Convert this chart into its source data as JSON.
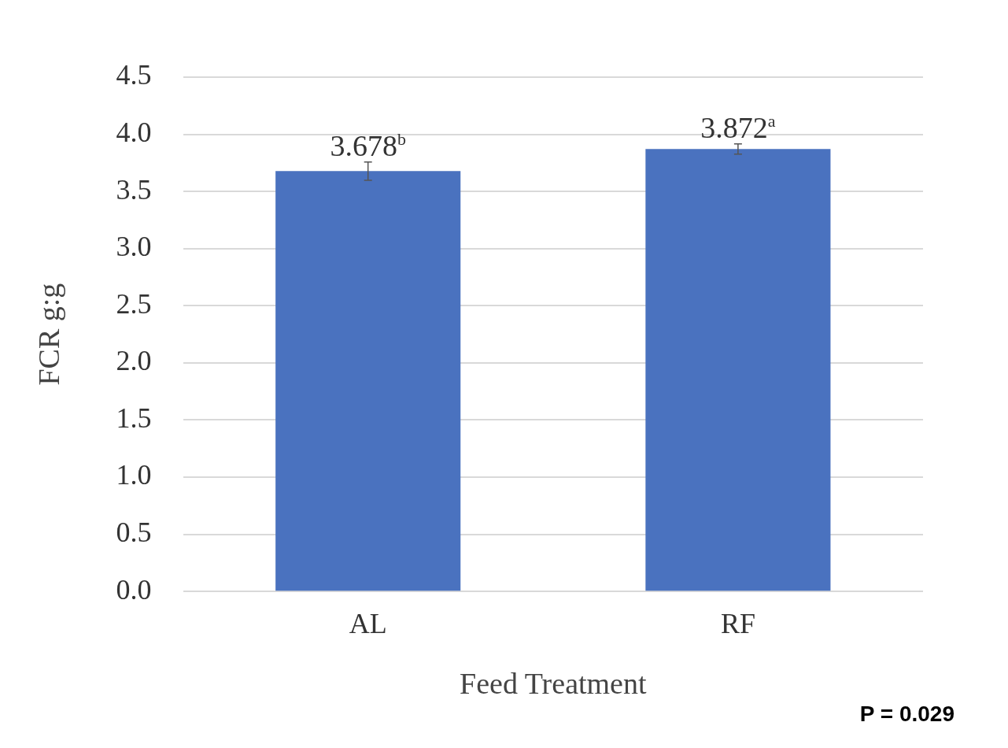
{
  "chart_data": {
    "type": "bar",
    "xlabel": "Feed Treatment",
    "ylabel": "FCR g:g",
    "categories": [
      "AL",
      "RF"
    ],
    "values": [
      3.678,
      3.872
    ],
    "errors": [
      0.08,
      0.045
    ],
    "value_labels": [
      "3.678$^{b}$",
      "3.872$^{a}$"
    ],
    "color": "#4a72bf",
    "ylim": [
      0,
      4.5
    ],
    "yticks": [
      {
        "value": 0,
        "label": "0.0"
      },
      {
        "value": 0.5,
        "label": "0.5"
      },
      {
        "value": 1,
        "label": "1.0"
      },
      {
        "value": 1.5,
        "label": "1.5"
      },
      {
        "value": 2,
        "label": "2.0"
      },
      {
        "value": 2.5,
        "label": "2.5"
      },
      {
        "value": 3,
        "label": "3.0"
      },
      {
        "value": 3.5,
        "label": "3.5"
      },
      {
        "value": 4,
        "label": "4.0"
      },
      {
        "value": 4.5,
        "label": "4.5"
      }
    ],
    "grid": "y",
    "annotations": [
      "P = 0.029"
    ]
  }
}
